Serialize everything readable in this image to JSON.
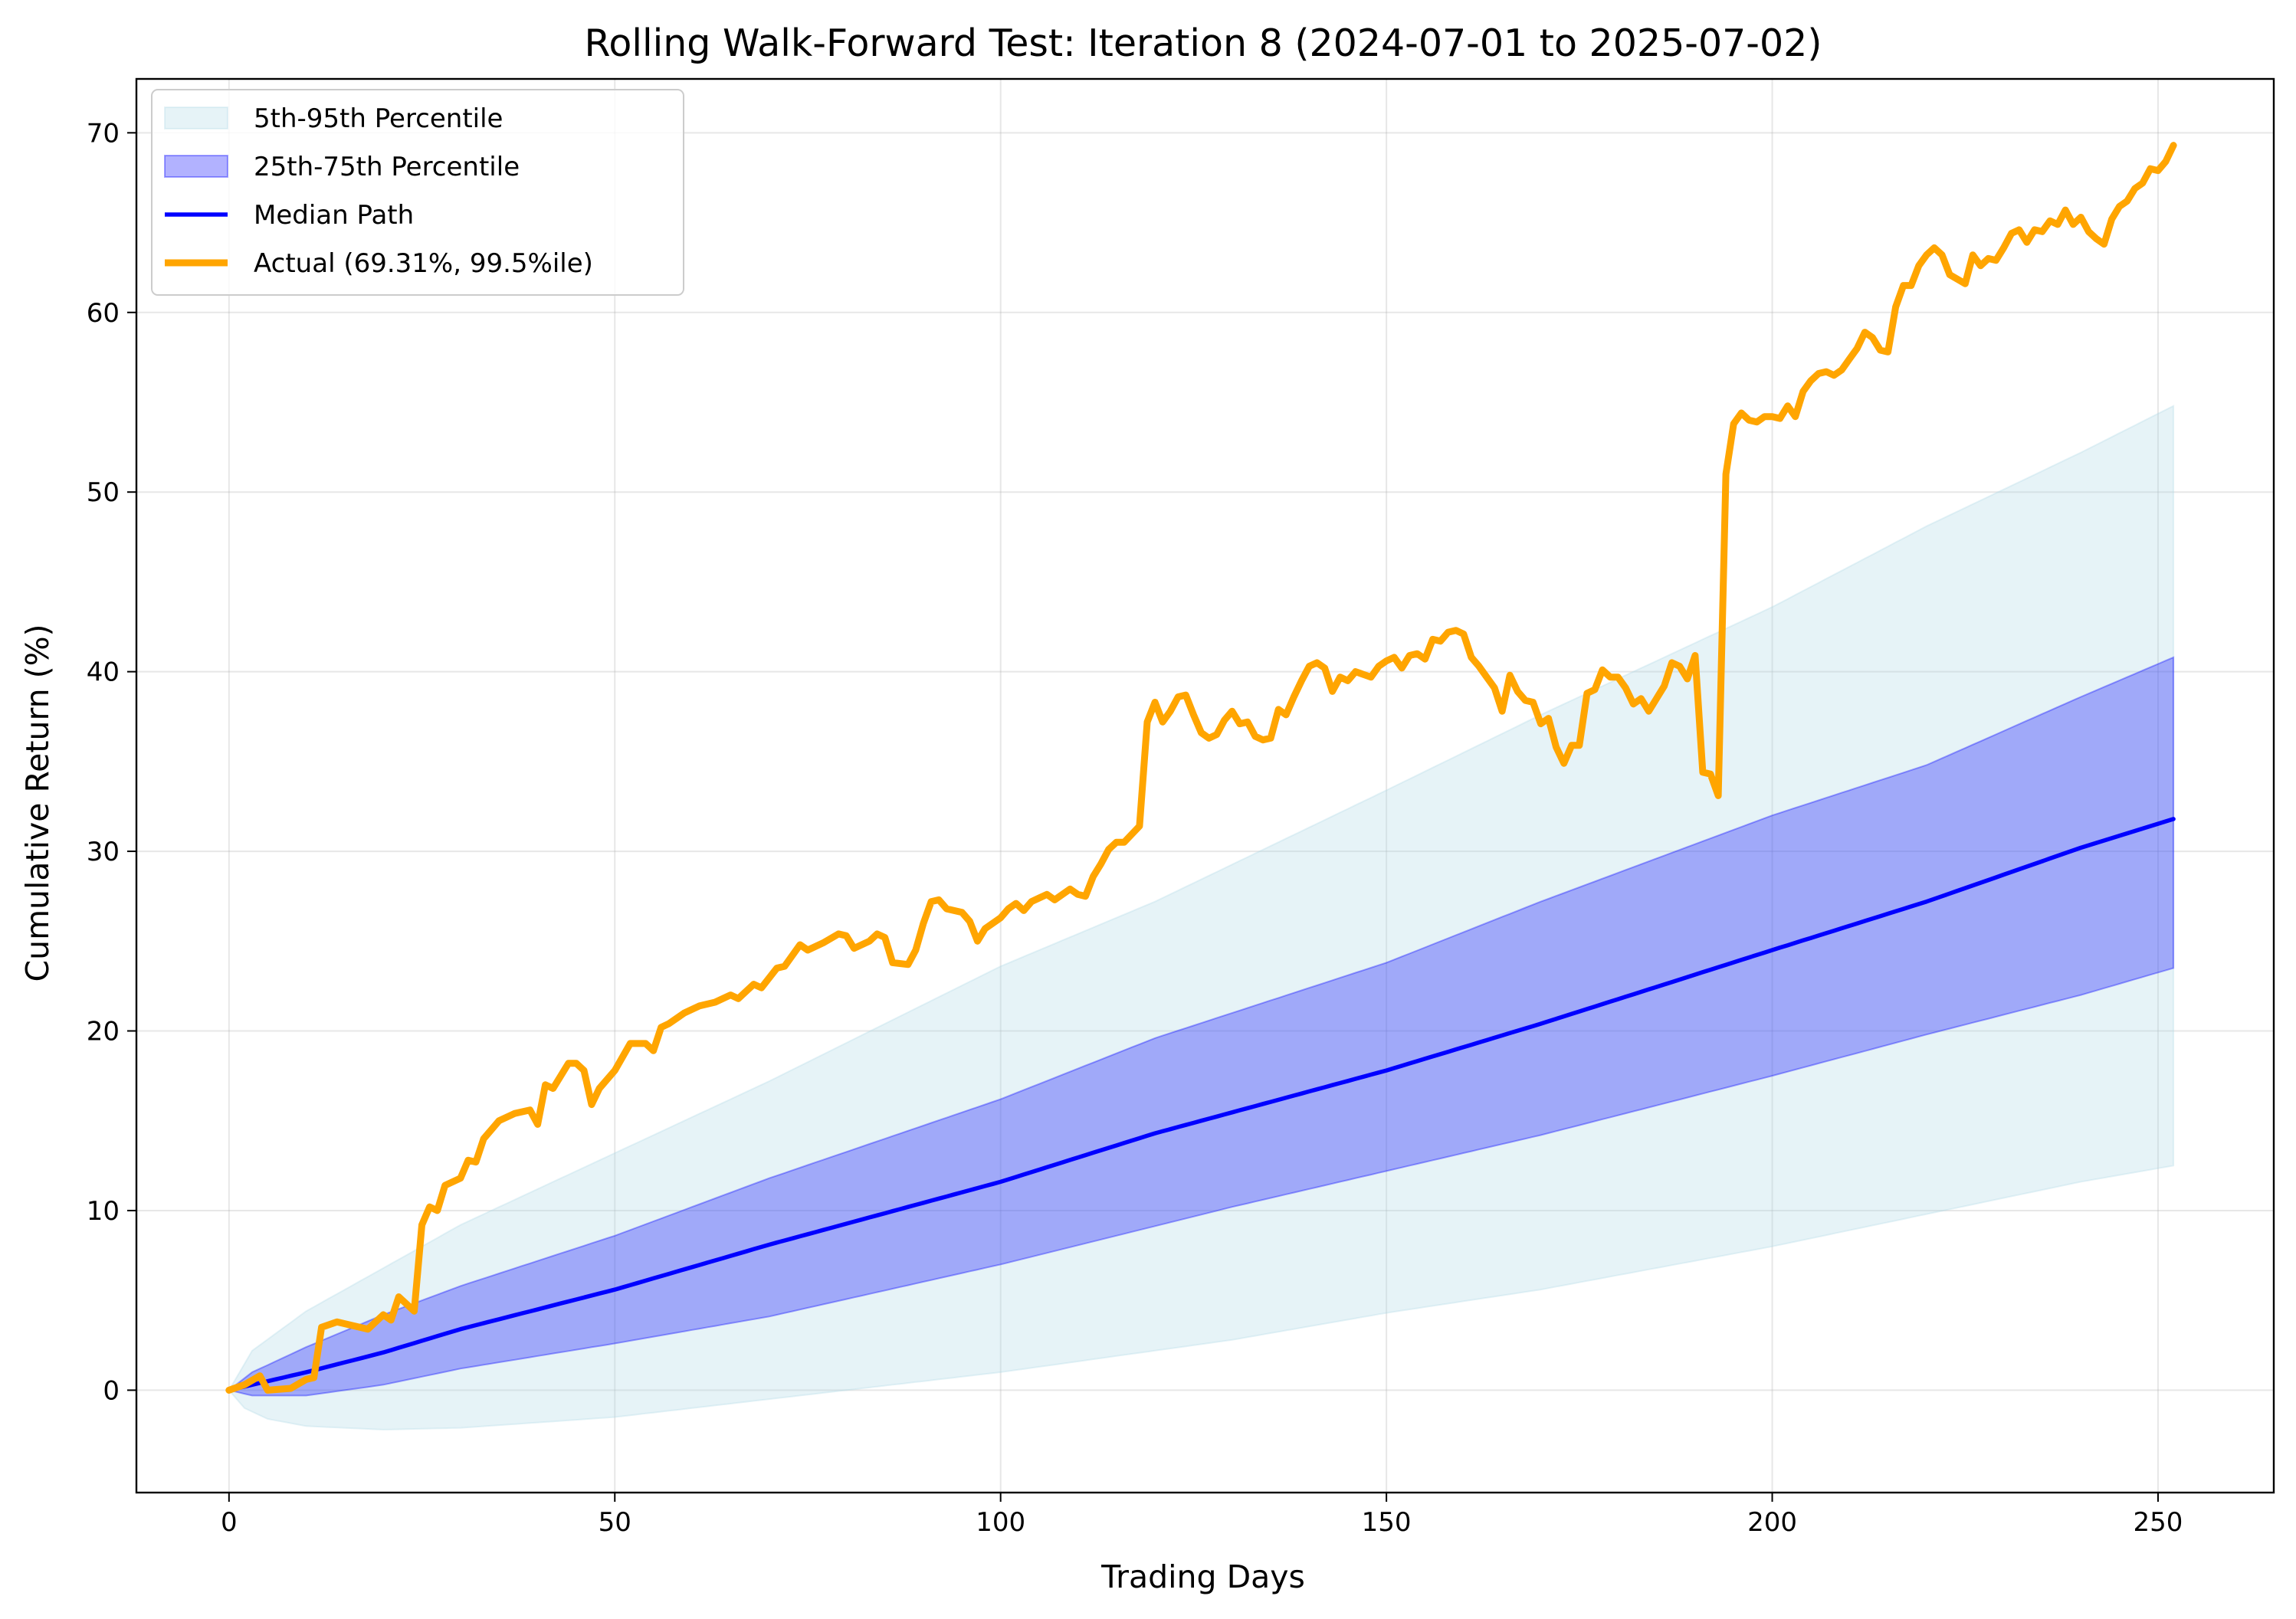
{
  "chart_data": {
    "type": "line",
    "title": "Rolling Walk-Forward Test: Iteration 8 (2024-07-01 to 2025-07-02)",
    "xlabel": "Trading Days",
    "ylabel": "Cumulative Return (%)",
    "xlim": [
      -12,
      265
    ],
    "ylim": [
      -5.7,
      73.0
    ],
    "xticks": [
      0,
      50,
      100,
      150,
      200,
      250
    ],
    "yticks": [
      0,
      10,
      20,
      30,
      40,
      50,
      60,
      70
    ],
    "grid": true,
    "legend_position": "upper-left",
    "colors": {
      "band_outer": "#add8e6",
      "band_inner": "#0000ff",
      "median": "#0000ff",
      "actual": "#ffa500"
    },
    "bands": [
      {
        "name": "5th-95th Percentile",
        "lower_anchors": [
          [
            0,
            0
          ],
          [
            2,
            -1
          ],
          [
            5,
            -1.6
          ],
          [
            10,
            -2.0
          ],
          [
            20,
            -2.2
          ],
          [
            30,
            -2.1
          ],
          [
            40,
            -1.8
          ],
          [
            50,
            -1.5
          ],
          [
            70,
            -0.5
          ],
          [
            100,
            1.0
          ],
          [
            130,
            2.8
          ],
          [
            150,
            4.3
          ],
          [
            170,
            5.6
          ],
          [
            200,
            8.0
          ],
          [
            220,
            9.8
          ],
          [
            240,
            11.6
          ],
          [
            252,
            12.5
          ]
        ],
        "upper_anchors": [
          [
            0,
            0
          ],
          [
            3,
            2.2
          ],
          [
            10,
            4.4
          ],
          [
            20,
            6.8
          ],
          [
            30,
            9.2
          ],
          [
            50,
            13.2
          ],
          [
            70,
            17.2
          ],
          [
            100,
            23.6
          ],
          [
            120,
            27.2
          ],
          [
            150,
            33.4
          ],
          [
            170,
            37.6
          ],
          [
            200,
            43.6
          ],
          [
            220,
            48.1
          ],
          [
            240,
            52.2
          ],
          [
            252,
            54.8
          ]
        ]
      },
      {
        "name": "25th-75th Percentile",
        "lower_anchors": [
          [
            0,
            0
          ],
          [
            3,
            -0.3
          ],
          [
            10,
            -0.3
          ],
          [
            20,
            0.3
          ],
          [
            30,
            1.2
          ],
          [
            50,
            2.6
          ],
          [
            70,
            4.1
          ],
          [
            100,
            7.0
          ],
          [
            130,
            10.2
          ],
          [
            150,
            12.2
          ],
          [
            170,
            14.2
          ],
          [
            200,
            17.5
          ],
          [
            220,
            19.8
          ],
          [
            240,
            22.0
          ],
          [
            252,
            23.5
          ]
        ],
        "upper_anchors": [
          [
            0,
            0
          ],
          [
            3,
            1.0
          ],
          [
            10,
            2.4
          ],
          [
            20,
            4.2
          ],
          [
            30,
            5.8
          ],
          [
            50,
            8.6
          ],
          [
            70,
            11.8
          ],
          [
            100,
            16.2
          ],
          [
            120,
            19.6
          ],
          [
            150,
            23.8
          ],
          [
            170,
            27.2
          ],
          [
            200,
            32.0
          ],
          [
            220,
            34.8
          ],
          [
            240,
            38.6
          ],
          [
            252,
            40.8
          ]
        ]
      }
    ],
    "series": [
      {
        "name": "Median Path",
        "anchors": [
          [
            0,
            0
          ],
          [
            10,
            1.0
          ],
          [
            20,
            2.1
          ],
          [
            30,
            3.4
          ],
          [
            50,
            5.6
          ],
          [
            70,
            8.1
          ],
          [
            100,
            11.6
          ],
          [
            120,
            14.3
          ],
          [
            150,
            17.8
          ],
          [
            170,
            20.4
          ],
          [
            200,
            24.5
          ],
          [
            220,
            27.2
          ],
          [
            240,
            30.2
          ],
          [
            252,
            31.8
          ]
        ]
      },
      {
        "name": "Actual (69.31%, 99.5%ile)",
        "points": [
          [
            0,
            0
          ],
          [
            2,
            0.3
          ],
          [
            4,
            0.8
          ],
          [
            5,
            0.0
          ],
          [
            8,
            0.1
          ],
          [
            10,
            0.6
          ],
          [
            11,
            0.7
          ],
          [
            12,
            3.5
          ],
          [
            14,
            3.8
          ],
          [
            16,
            3.6
          ],
          [
            18,
            3.4
          ],
          [
            20,
            4.2
          ],
          [
            21,
            3.9
          ],
          [
            22,
            5.2
          ],
          [
            24,
            4.4
          ],
          [
            25,
            9.2
          ],
          [
            26,
            10.2
          ],
          [
            27,
            10.0
          ],
          [
            28,
            11.4
          ],
          [
            30,
            11.8
          ],
          [
            31,
            12.8
          ],
          [
            32,
            12.7
          ],
          [
            33,
            14.0
          ],
          [
            35,
            15.0
          ],
          [
            37,
            15.4
          ],
          [
            39,
            15.6
          ],
          [
            40,
            14.8
          ],
          [
            41,
            17.0
          ],
          [
            42,
            16.8
          ],
          [
            44,
            18.2
          ],
          [
            45,
            18.2
          ],
          [
            46,
            17.8
          ],
          [
            47,
            15.9
          ],
          [
            48,
            16.8
          ],
          [
            50,
            17.8
          ],
          [
            52,
            19.3
          ],
          [
            54,
            19.3
          ],
          [
            55,
            18.9
          ],
          [
            56,
            20.2
          ],
          [
            57,
            20.4
          ],
          [
            59,
            21.0
          ],
          [
            61,
            21.4
          ],
          [
            63,
            21.6
          ],
          [
            65,
            22.0
          ],
          [
            66,
            21.8
          ],
          [
            68,
            22.6
          ],
          [
            69,
            22.4
          ],
          [
            71,
            23.5
          ],
          [
            72,
            23.6
          ],
          [
            74,
            24.8
          ],
          [
            75,
            24.5
          ],
          [
            77,
            24.9
          ],
          [
            79,
            25.4
          ],
          [
            80,
            25.3
          ],
          [
            81,
            24.6
          ],
          [
            83,
            25.0
          ],
          [
            84,
            25.4
          ],
          [
            85,
            25.2
          ],
          [
            86,
            23.8
          ],
          [
            88,
            23.7
          ],
          [
            89,
            24.5
          ],
          [
            90,
            26.0
          ],
          [
            91,
            27.2
          ],
          [
            92,
            27.3
          ],
          [
            93,
            26.8
          ],
          [
            95,
            26.6
          ],
          [
            96,
            26.1
          ],
          [
            97,
            25.0
          ],
          [
            98,
            25.7
          ],
          [
            100,
            26.3
          ],
          [
            101,
            26.8
          ],
          [
            102,
            27.1
          ],
          [
            103,
            26.7
          ],
          [
            104,
            27.2
          ],
          [
            105,
            27.4
          ],
          [
            106,
            27.6
          ],
          [
            107,
            27.3
          ],
          [
            109,
            27.9
          ],
          [
            110,
            27.6
          ],
          [
            111,
            27.5
          ],
          [
            112,
            28.6
          ],
          [
            113,
            29.3
          ],
          [
            114,
            30.1
          ],
          [
            115,
            30.5
          ],
          [
            116,
            30.5
          ],
          [
            118,
            31.4
          ],
          [
            119,
            37.2
          ],
          [
            120,
            38.3
          ],
          [
            121,
            37.2
          ],
          [
            122,
            37.8
          ],
          [
            123,
            38.6
          ],
          [
            124,
            38.7
          ],
          [
            125,
            37.6
          ],
          [
            126,
            36.6
          ],
          [
            127,
            36.3
          ],
          [
            128,
            36.5
          ],
          [
            129,
            37.3
          ],
          [
            130,
            37.8
          ],
          [
            131,
            37.1
          ],
          [
            132,
            37.2
          ],
          [
            133,
            36.4
          ],
          [
            134,
            36.2
          ],
          [
            135,
            36.3
          ],
          [
            136,
            37.9
          ],
          [
            137,
            37.6
          ],
          [
            138,
            38.6
          ],
          [
            139,
            39.5
          ],
          [
            140,
            40.3
          ],
          [
            141,
            40.5
          ],
          [
            142,
            40.2
          ],
          [
            143,
            38.9
          ],
          [
            144,
            39.7
          ],
          [
            145,
            39.5
          ],
          [
            146,
            40.0
          ],
          [
            148,
            39.7
          ],
          [
            149,
            40.3
          ],
          [
            150,
            40.6
          ],
          [
            151,
            40.8
          ],
          [
            152,
            40.2
          ],
          [
            153,
            40.9
          ],
          [
            154,
            41.0
          ],
          [
            155,
            40.7
          ],
          [
            156,
            41.8
          ],
          [
            157,
            41.7
          ],
          [
            158,
            42.2
          ],
          [
            159,
            42.3
          ],
          [
            160,
            42.1
          ],
          [
            161,
            40.8
          ],
          [
            162,
            40.3
          ],
          [
            163,
            39.7
          ],
          [
            164,
            39.1
          ],
          [
            165,
            37.8
          ],
          [
            166,
            39.8
          ],
          [
            167,
            38.9
          ],
          [
            168,
            38.4
          ],
          [
            169,
            38.3
          ],
          [
            170,
            37.1
          ],
          [
            171,
            37.4
          ],
          [
            172,
            35.8
          ],
          [
            173,
            34.9
          ],
          [
            174,
            35.9
          ],
          [
            175,
            35.9
          ],
          [
            176,
            38.8
          ],
          [
            177,
            39.0
          ],
          [
            178,
            40.1
          ],
          [
            179,
            39.7
          ],
          [
            180,
            39.7
          ],
          [
            181,
            39.1
          ],
          [
            182,
            38.2
          ],
          [
            183,
            38.5
          ],
          [
            184,
            37.8
          ],
          [
            185,
            38.5
          ],
          [
            186,
            39.2
          ],
          [
            187,
            40.5
          ],
          [
            188,
            40.3
          ],
          [
            189,
            39.6
          ],
          [
            190,
            40.9
          ],
          [
            191,
            34.4
          ],
          [
            192,
            34.3
          ],
          [
            193,
            33.1
          ],
          [
            194,
            51.0
          ],
          [
            195,
            53.8
          ],
          [
            196,
            54.4
          ],
          [
            197,
            54.0
          ],
          [
            198,
            53.9
          ],
          [
            199,
            54.2
          ],
          [
            200,
            54.2
          ],
          [
            201,
            54.1
          ],
          [
            202,
            54.8
          ],
          [
            203,
            54.2
          ],
          [
            204,
            55.6
          ],
          [
            205,
            56.2
          ],
          [
            206,
            56.6
          ],
          [
            207,
            56.7
          ],
          [
            208,
            56.5
          ],
          [
            209,
            56.8
          ],
          [
            210,
            57.4
          ],
          [
            211,
            58.0
          ],
          [
            212,
            58.9
          ],
          [
            213,
            58.6
          ],
          [
            214,
            57.9
          ],
          [
            215,
            57.8
          ],
          [
            216,
            60.3
          ],
          [
            217,
            61.5
          ],
          [
            218,
            61.5
          ],
          [
            219,
            62.6
          ],
          [
            220,
            63.2
          ],
          [
            221,
            63.6
          ],
          [
            222,
            63.2
          ],
          [
            223,
            62.1
          ],
          [
            225,
            61.6
          ],
          [
            226,
            63.2
          ],
          [
            227,
            62.6
          ],
          [
            228,
            63.0
          ],
          [
            229,
            62.9
          ],
          [
            230,
            63.6
          ],
          [
            231,
            64.4
          ],
          [
            232,
            64.6
          ],
          [
            233,
            63.9
          ],
          [
            234,
            64.6
          ],
          [
            235,
            64.5
          ],
          [
            236,
            65.1
          ],
          [
            237,
            64.9
          ],
          [
            238,
            65.7
          ],
          [
            239,
            64.9
          ],
          [
            240,
            65.3
          ],
          [
            241,
            64.5
          ],
          [
            242,
            64.1
          ],
          [
            243,
            63.8
          ],
          [
            244,
            65.2
          ],
          [
            245,
            65.9
          ],
          [
            246,
            66.2
          ],
          [
            247,
            66.9
          ],
          [
            248,
            67.2
          ],
          [
            249,
            68.0
          ],
          [
            250,
            67.9
          ],
          [
            251,
            68.4
          ],
          [
            252,
            69.3
          ]
        ]
      }
    ],
    "legend": [
      {
        "label": "5th-95th Percentile",
        "kind": "band_outer"
      },
      {
        "label": "25th-75th Percentile",
        "kind": "band_inner"
      },
      {
        "label": "Median Path",
        "kind": "median"
      },
      {
        "label": "Actual (69.31%, 99.5%ile)",
        "kind": "actual"
      }
    ]
  }
}
